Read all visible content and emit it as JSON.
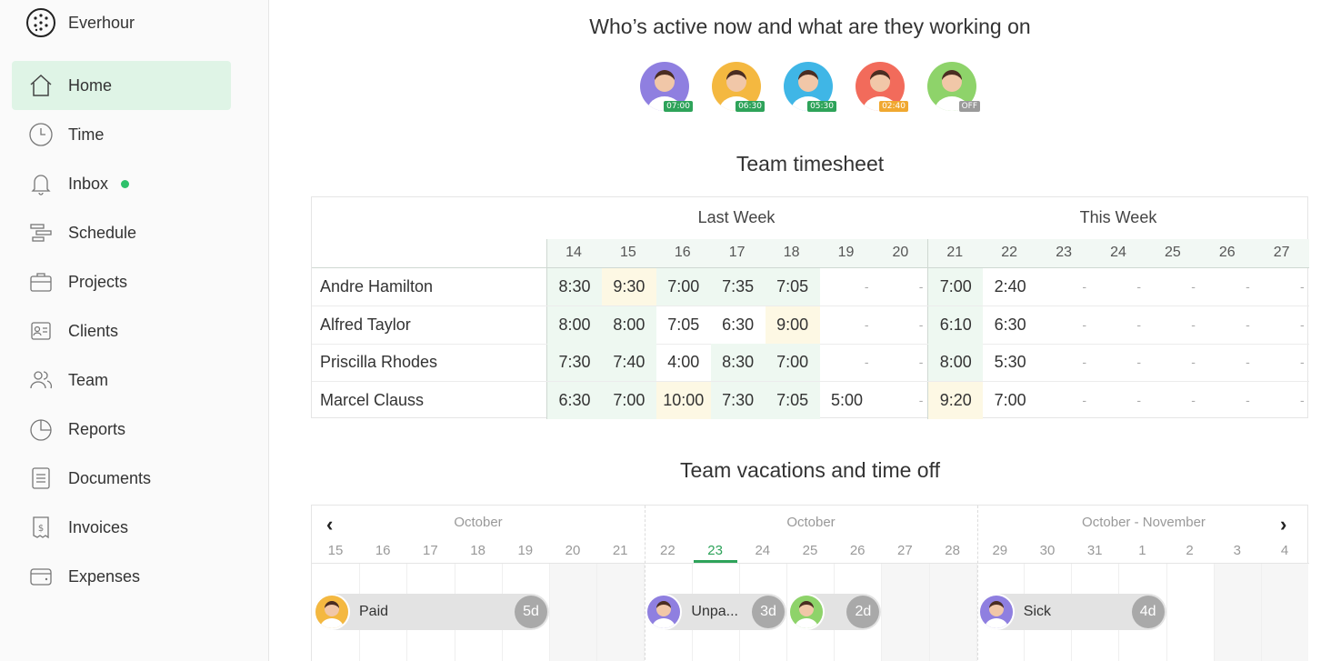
{
  "app": {
    "name": "Everhour"
  },
  "sidebar": {
    "items": [
      {
        "label": "Home",
        "icon": "home-icon",
        "active": true
      },
      {
        "label": "Time",
        "icon": "clock-icon"
      },
      {
        "label": "Inbox",
        "icon": "bell-icon",
        "has_dot": true
      },
      {
        "label": "Schedule",
        "icon": "schedule-icon"
      },
      {
        "label": "Projects",
        "icon": "briefcase-icon"
      },
      {
        "label": "Clients",
        "icon": "contact-card-icon"
      },
      {
        "label": "Team",
        "icon": "team-icon"
      },
      {
        "label": "Reports",
        "icon": "pie-chart-icon"
      },
      {
        "label": "Documents",
        "icon": "document-icon"
      },
      {
        "label": "Invoices",
        "icon": "invoice-icon"
      },
      {
        "label": "Expenses",
        "icon": "wallet-icon"
      }
    ]
  },
  "active_section": {
    "title": "Who’s active now and what are they working on",
    "people": [
      {
        "time": "07:00",
        "color": "#2ea35a",
        "bg": "#8f7fe0"
      },
      {
        "time": "06:30",
        "color": "#2ea35a",
        "bg": "#f4b840"
      },
      {
        "time": "05:30",
        "color": "#2ea35a",
        "bg": "#3fb6e6"
      },
      {
        "time": "02:40",
        "color": "#f0a830",
        "bg": "#f26b5b"
      },
      {
        "time": "OFF",
        "color": "#9a9a9a",
        "bg": "#8ed36a"
      }
    ]
  },
  "timesheet": {
    "title": "Team timesheet",
    "last_week_label": "Last Week",
    "this_week_label": "This Week",
    "days": [
      "14",
      "15",
      "16",
      "17",
      "18",
      "19",
      "20",
      "21",
      "22",
      "23",
      "24",
      "25",
      "26",
      "27"
    ],
    "rows": [
      {
        "name": "Andre Hamilton",
        "cells": [
          "8:30",
          "9:30",
          "7:00",
          "7:35",
          "7:05",
          "-",
          "-",
          "7:00",
          "2:40",
          "-",
          "-",
          "-",
          "-",
          "-"
        ],
        "hl": [
          "g",
          "y",
          "g",
          "g",
          "g",
          "",
          "",
          "g",
          "",
          "",
          "",
          "",
          "",
          ""
        ]
      },
      {
        "name": "Alfred Taylor",
        "cells": [
          "8:00",
          "8:00",
          "7:05",
          "6:30",
          "9:00",
          "-",
          "-",
          "6:10",
          "6:30",
          "-",
          "-",
          "-",
          "-",
          "-"
        ],
        "hl": [
          "g",
          "g",
          "",
          "",
          "y",
          "",
          "",
          "g",
          "",
          "",
          "",
          "",
          "",
          ""
        ]
      },
      {
        "name": "Priscilla Rhodes",
        "cells": [
          "7:30",
          "7:40",
          "4:00",
          "8:30",
          "7:00",
          "-",
          "-",
          "8:00",
          "5:30",
          "-",
          "-",
          "-",
          "-",
          "-"
        ],
        "hl": [
          "g",
          "g",
          "",
          "g",
          "g",
          "",
          "",
          "g",
          "",
          "",
          "",
          "",
          "",
          ""
        ]
      },
      {
        "name": "Marcel Clauss",
        "cells": [
          "6:30",
          "7:00",
          "10:00",
          "7:30",
          "7:05",
          "5:00",
          "-",
          "9:20",
          "7:00",
          "-",
          "-",
          "-",
          "-",
          "-"
        ],
        "hl": [
          "g",
          "g",
          "y",
          "g",
          "g",
          "",
          "",
          "y",
          "",
          "",
          "",
          "",
          "",
          ""
        ]
      }
    ]
  },
  "vacations": {
    "title": "Team vacations and time off",
    "months": [
      "October",
      "October",
      "October - November"
    ],
    "days": [
      "15",
      "16",
      "17",
      "18",
      "19",
      "20",
      "21",
      "22",
      "23",
      "24",
      "25",
      "26",
      "27",
      "28",
      "29",
      "30",
      "31",
      "1",
      "2",
      "3",
      "4"
    ],
    "today": "23",
    "entries": [
      {
        "label": "Paid",
        "days": "5d",
        "avatar_bg": "#f4b840"
      },
      {
        "label": "Unpa...",
        "days": "3d",
        "avatar_bg": "#8f7fe0"
      },
      {
        "label": "",
        "days": "2d",
        "avatar_bg": "#8ed36a"
      },
      {
        "label": "Sick",
        "days": "4d",
        "avatar_bg": "#8f7fe0"
      }
    ]
  }
}
